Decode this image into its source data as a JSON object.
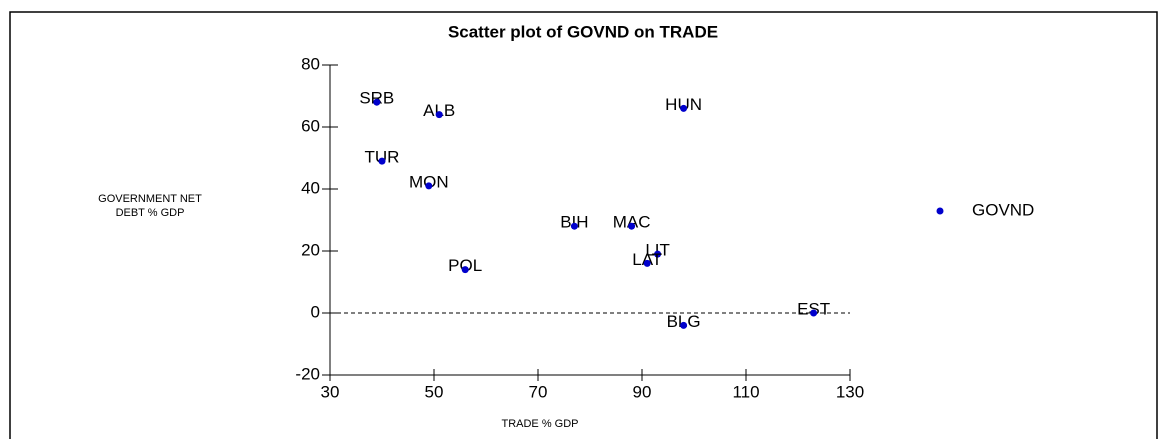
{
  "chart_data": {
    "type": "scatter",
    "title": "Scatter plot of GOVND on TRADE",
    "x_label": "TRADE  % GDP",
    "y_label": [
      "GOVERNMENT NET",
      "DEBT % GDP"
    ],
    "xlim": [
      30,
      130
    ],
    "xticks": [
      30,
      50,
      70,
      90,
      110,
      130
    ],
    "ylim": [
      -20,
      80
    ],
    "yticks": [
      -20,
      0,
      20,
      40,
      60,
      80
    ],
    "reference_line": 0,
    "point_labels": [
      "SRB",
      "ALB",
      "HUN",
      "TUR",
      "MON",
      "BIH",
      "MAC",
      "LIT",
      "LAT",
      "POL",
      "EST",
      "BLG"
    ],
    "x": [
      39,
      51,
      98,
      40,
      49,
      77,
      88,
      93,
      91,
      56,
      123,
      98
    ],
    "series": [
      {
        "name": "GOVND",
        "color": "#0000cc",
        "values": [
          68,
          64,
          66,
          49,
          41,
          28,
          28,
          19,
          16,
          14,
          0,
          -4
        ]
      }
    ],
    "legend": "right"
  }
}
